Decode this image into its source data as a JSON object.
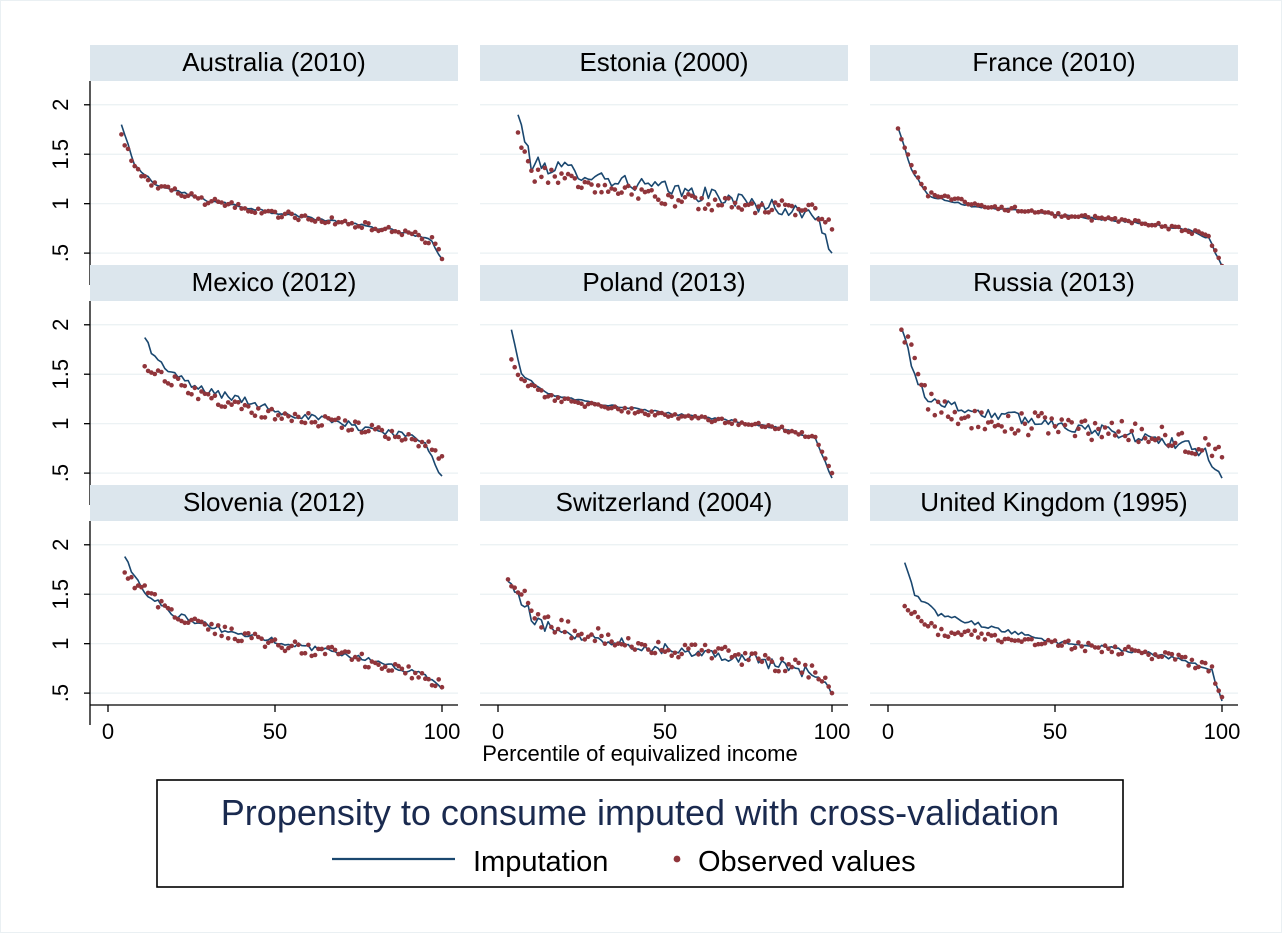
{
  "chart_data": {
    "type": "line",
    "layout": "3x3 small multiples",
    "xlabel": "Percentile of equivalized income",
    "x_ticks": [
      0,
      50,
      100
    ],
    "y_ticks": [
      ".5",
      "1",
      "1.5",
      "2"
    ],
    "xlim": [
      0,
      100
    ],
    "ylim": [
      0.4,
      2.2
    ],
    "grid": "horizontal",
    "legend": {
      "position": "bottom",
      "title": "Propensity to consume imputed with cross-validation",
      "entries": [
        {
          "label": "Imputation",
          "marker": "line",
          "color": "#1a476f"
        },
        {
          "label": "Observed values",
          "marker": "dot",
          "color": "#90353b"
        }
      ]
    },
    "colors": {
      "imputation": "#1a476f",
      "observed": "#90353b",
      "title_bar": "#dce6ed",
      "grid": "#eaf0f3"
    },
    "panels": [
      {
        "title": "Australia (2010)",
        "x_start": 4,
        "imputation_knots": [
          [
            4,
            1.8
          ],
          [
            8,
            1.38
          ],
          [
            15,
            1.18
          ],
          [
            30,
            1.03
          ],
          [
            50,
            0.91
          ],
          [
            70,
            0.81
          ],
          [
            85,
            0.73
          ],
          [
            93,
            0.67
          ],
          [
            97,
            0.62
          ],
          [
            100,
            0.44
          ]
        ],
        "observed_knots": [
          [
            4,
            1.7
          ],
          [
            8,
            1.36
          ],
          [
            15,
            1.16
          ],
          [
            30,
            1.02
          ],
          [
            50,
            0.9
          ],
          [
            70,
            0.81
          ],
          [
            85,
            0.73
          ],
          [
            93,
            0.67
          ],
          [
            97,
            0.62
          ],
          [
            100,
            0.44
          ]
        ],
        "imputation_noise": 0.015,
        "observed_noise": 0.04
      },
      {
        "title": "Estonia (2000)",
        "x_start": 6,
        "imputation_knots": [
          [
            6,
            1.9
          ],
          [
            10,
            1.4
          ],
          [
            20,
            1.35
          ],
          [
            35,
            1.24
          ],
          [
            50,
            1.15
          ],
          [
            70,
            1.05
          ],
          [
            88,
            0.93
          ],
          [
            96,
            0.86
          ],
          [
            100,
            0.5
          ]
        ],
        "observed_knots": [
          [
            6,
            1.72
          ],
          [
            10,
            1.3
          ],
          [
            20,
            1.27
          ],
          [
            35,
            1.12
          ],
          [
            50,
            1.05
          ],
          [
            70,
            0.98
          ],
          [
            88,
            0.95
          ],
          [
            96,
            0.9
          ],
          [
            100,
            0.74
          ]
        ],
        "imputation_noise": 0.08,
        "observed_noise": 0.08
      },
      {
        "title": "France (2010)",
        "x_start": 3,
        "imputation_knots": [
          [
            3,
            1.77
          ],
          [
            7,
            1.35
          ],
          [
            12,
            1.08
          ],
          [
            25,
            0.98
          ],
          [
            50,
            0.89
          ],
          [
            75,
            0.81
          ],
          [
            90,
            0.73
          ],
          [
            96,
            0.65
          ],
          [
            100,
            0.37
          ]
        ],
        "observed_knots": [
          [
            3,
            1.76
          ],
          [
            7,
            1.38
          ],
          [
            12,
            1.1
          ],
          [
            25,
            1.0
          ],
          [
            50,
            0.89
          ],
          [
            75,
            0.81
          ],
          [
            90,
            0.73
          ],
          [
            96,
            0.66
          ],
          [
            100,
            0.37
          ]
        ],
        "imputation_noise": 0.012,
        "observed_noise": 0.025
      },
      {
        "title": "Mexico (2012)",
        "x_start": 11,
        "imputation_knots": [
          [
            11,
            1.87
          ],
          [
            15,
            1.62
          ],
          [
            25,
            1.38
          ],
          [
            40,
            1.24
          ],
          [
            55,
            1.1
          ],
          [
            70,
            1.0
          ],
          [
            85,
            0.91
          ],
          [
            95,
            0.83
          ],
          [
            100,
            0.47
          ]
        ],
        "observed_knots": [
          [
            11,
            1.58
          ],
          [
            15,
            1.52
          ],
          [
            25,
            1.32
          ],
          [
            40,
            1.15
          ],
          [
            55,
            1.07
          ],
          [
            70,
            1.0
          ],
          [
            85,
            0.9
          ],
          [
            95,
            0.81
          ],
          [
            100,
            0.67
          ]
        ],
        "imputation_noise": 0.04,
        "observed_noise": 0.06
      },
      {
        "title": "Poland (2013)",
        "x_start": 4,
        "imputation_knots": [
          [
            4,
            1.95
          ],
          [
            7,
            1.5
          ],
          [
            15,
            1.3
          ],
          [
            30,
            1.2
          ],
          [
            50,
            1.11
          ],
          [
            70,
            1.03
          ],
          [
            85,
            0.95
          ],
          [
            95,
            0.85
          ],
          [
            100,
            0.45
          ]
        ],
        "observed_knots": [
          [
            4,
            1.65
          ],
          [
            7,
            1.45
          ],
          [
            15,
            1.27
          ],
          [
            30,
            1.17
          ],
          [
            50,
            1.09
          ],
          [
            70,
            1.02
          ],
          [
            85,
            0.95
          ],
          [
            95,
            0.86
          ],
          [
            100,
            0.5
          ]
        ],
        "imputation_noise": 0.01,
        "observed_noise": 0.025
      },
      {
        "title": "Russia (2013)",
        "x_start": 4,
        "imputation_knots": [
          [
            4,
            1.97
          ],
          [
            8,
            1.5
          ],
          [
            12,
            1.25
          ],
          [
            25,
            1.13
          ],
          [
            50,
            1.0
          ],
          [
            75,
            0.87
          ],
          [
            90,
            0.77
          ],
          [
            96,
            0.68
          ],
          [
            100,
            0.45
          ]
        ],
        "observed_knots": [
          [
            4,
            1.95
          ],
          [
            8,
            1.65
          ],
          [
            12,
            1.22
          ],
          [
            25,
            1.05
          ],
          [
            50,
            0.98
          ],
          [
            75,
            0.9
          ],
          [
            90,
            0.8
          ],
          [
            96,
            0.72
          ],
          [
            100,
            0.66
          ]
        ],
        "imputation_noise": 0.06,
        "observed_noise": 0.12
      },
      {
        "title": "Slovenia (2012)",
        "x_start": 5,
        "imputation_knots": [
          [
            5,
            1.88
          ],
          [
            10,
            1.55
          ],
          [
            20,
            1.3
          ],
          [
            35,
            1.13
          ],
          [
            50,
            1.03
          ],
          [
            70,
            0.9
          ],
          [
            85,
            0.78
          ],
          [
            95,
            0.68
          ],
          [
            100,
            0.54
          ]
        ],
        "observed_knots": [
          [
            5,
            1.72
          ],
          [
            10,
            1.55
          ],
          [
            20,
            1.3
          ],
          [
            35,
            1.1
          ],
          [
            50,
            1.0
          ],
          [
            70,
            0.88
          ],
          [
            85,
            0.78
          ],
          [
            95,
            0.68
          ],
          [
            100,
            0.56
          ]
        ],
        "imputation_noise": 0.03,
        "observed_noise": 0.07
      },
      {
        "title": "Switzerland (2004)",
        "x_start": 3,
        "imputation_knots": [
          [
            3,
            1.63
          ],
          [
            7,
            1.42
          ],
          [
            12,
            1.2
          ],
          [
            25,
            1.08
          ],
          [
            50,
            0.95
          ],
          [
            75,
            0.86
          ],
          [
            90,
            0.73
          ],
          [
            97,
            0.66
          ],
          [
            100,
            0.48
          ]
        ],
        "observed_knots": [
          [
            3,
            1.65
          ],
          [
            7,
            1.5
          ],
          [
            12,
            1.24
          ],
          [
            25,
            1.1
          ],
          [
            50,
            0.95
          ],
          [
            75,
            0.87
          ],
          [
            90,
            0.76
          ],
          [
            97,
            0.7
          ],
          [
            100,
            0.5
          ]
        ],
        "imputation_noise": 0.06,
        "observed_noise": 0.09
      },
      {
        "title": "United Kingdom (1995)",
        "x_start": 5,
        "imputation_knots": [
          [
            5,
            1.82
          ],
          [
            8,
            1.5
          ],
          [
            15,
            1.3
          ],
          [
            30,
            1.17
          ],
          [
            50,
            1.02
          ],
          [
            75,
            0.92
          ],
          [
            90,
            0.82
          ],
          [
            97,
            0.72
          ],
          [
            100,
            0.42
          ]
        ],
        "observed_knots": [
          [
            5,
            1.38
          ],
          [
            8,
            1.3
          ],
          [
            15,
            1.12
          ],
          [
            30,
            1.07
          ],
          [
            50,
            1.0
          ],
          [
            75,
            0.92
          ],
          [
            90,
            0.82
          ],
          [
            97,
            0.74
          ],
          [
            100,
            0.46
          ]
        ],
        "imputation_noise": 0.02,
        "observed_noise": 0.05
      }
    ]
  }
}
